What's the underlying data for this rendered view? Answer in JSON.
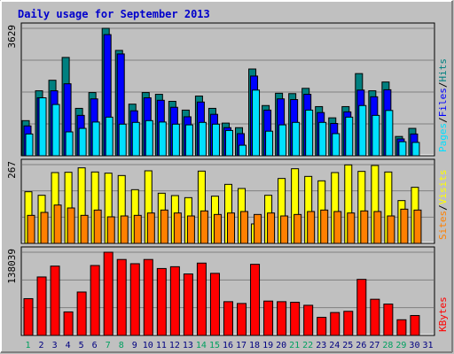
{
  "title": "Daily usage for September 2013",
  "colors": {
    "bg": "#c0c0c0",
    "title": "#0000cc",
    "hits": "#008080",
    "files": "#0000ff",
    "pages": "#00e0ff",
    "visits": "#ffff00",
    "sites": "#ff8000",
    "kbytes": "#ff0000",
    "weekend": "#00a060",
    "weekday": "#000080"
  },
  "chart_data": [
    {
      "type": "bar",
      "name": "hits-files-pages",
      "ymax_label": "3629",
      "ymax": 3629,
      "right_labels": [
        "Pages",
        "/",
        "Files",
        "/",
        "Hits"
      ],
      "x": [
        1,
        2,
        3,
        4,
        5,
        6,
        7,
        8,
        9,
        10,
        11,
        12,
        13,
        14,
        15,
        16,
        17,
        18,
        19,
        20,
        21,
        22,
        23,
        24,
        25,
        26,
        27,
        28,
        29,
        30
      ],
      "series": [
        {
          "name": "Hits",
          "values": [
            1000,
            1850,
            2150,
            2800,
            1350,
            1800,
            3629,
            3000,
            1470,
            1800,
            1750,
            1550,
            1300,
            1700,
            1350,
            930,
            800,
            2470,
            1430,
            1780,
            1770,
            1920,
            1400,
            1080,
            1400,
            2340,
            1850,
            2100,
            550,
            780
          ]
        },
        {
          "name": "Files",
          "values": [
            850,
            1650,
            1850,
            2050,
            1150,
            1620,
            3450,
            2900,
            1280,
            1650,
            1580,
            1380,
            1110,
            1530,
            1180,
            800,
            630,
            2270,
            1300,
            1620,
            1600,
            1750,
            1230,
            920,
            1250,
            1870,
            1680,
            1880,
            480,
            620
          ]
        },
        {
          "name": "Pages",
          "values": [
            620,
            1650,
            1460,
            680,
            780,
            960,
            1100,
            900,
            950,
            1000,
            960,
            900,
            880,
            950,
            900,
            720,
            300,
            1870,
            700,
            880,
            950,
            1300,
            950,
            630,
            1100,
            1430,
            1150,
            1290,
            400,
            380
          ]
        }
      ]
    },
    {
      "type": "bar",
      "name": "visits-sites",
      "ymax_label": "267",
      "ymax": 267,
      "right_labels": [
        "Sites",
        "/",
        "Visits"
      ],
      "x": [
        1,
        2,
        3,
        4,
        5,
        6,
        7,
        8,
        9,
        10,
        11,
        12,
        13,
        14,
        15,
        16,
        17,
        18,
        19,
        20,
        21,
        22,
        23,
        24,
        25,
        26,
        27,
        28,
        29,
        30
      ],
      "series": [
        {
          "name": "Visits",
          "values": [
            175,
            163,
            240,
            241,
            256,
            242,
            238,
            230,
            182,
            246,
            170,
            162,
            155,
            245,
            160,
            200,
            186,
            66,
            163,
            220,
            253,
            227,
            212,
            240,
            266,
            244,
            264,
            242,
            145,
            190
          ]
        },
        {
          "name": "Sites",
          "values": [
            95,
            105,
            130,
            120,
            95,
            113,
            90,
            93,
            95,
            103,
            113,
            103,
            93,
            110,
            98,
            103,
            108,
            98,
            103,
            93,
            98,
            108,
            113,
            108,
            103,
            110,
            108,
            93,
            116,
            113
          ]
        }
      ]
    },
    {
      "type": "bar",
      "name": "kbytes",
      "ymax_label": "138039",
      "ymax": 138039,
      "right_labels": [
        "KBytes"
      ],
      "x": [
        1,
        2,
        3,
        4,
        5,
        6,
        7,
        8,
        9,
        10,
        11,
        12,
        13,
        14,
        15,
        16,
        17,
        18,
        19,
        20,
        21,
        22,
        23,
        24,
        25,
        26,
        27,
        28,
        29,
        30
      ],
      "series": [
        {
          "name": "KBytes",
          "values": [
            61000,
            97000,
            115000,
            39000,
            72000,
            116000,
            138039,
            126000,
            119000,
            126000,
            111000,
            114000,
            102000,
            120000,
            103000,
            56000,
            53000,
            118000,
            57000,
            56000,
            55000,
            50000,
            30000,
            38000,
            40000,
            93000,
            60000,
            52000,
            26000,
            33000
          ]
        }
      ]
    }
  ],
  "x_axis": {
    "labels": [
      "1",
      "2",
      "3",
      "4",
      "5",
      "6",
      "7",
      "8",
      "9",
      "10",
      "11",
      "12",
      "13",
      "14",
      "15",
      "16",
      "17",
      "18",
      "19",
      "20",
      "21",
      "22",
      "23",
      "24",
      "25",
      "26",
      "27",
      "28",
      "29",
      "30",
      "31"
    ],
    "weekend_days": [
      1,
      7,
      8,
      14,
      15,
      21,
      22,
      28,
      29
    ]
  }
}
